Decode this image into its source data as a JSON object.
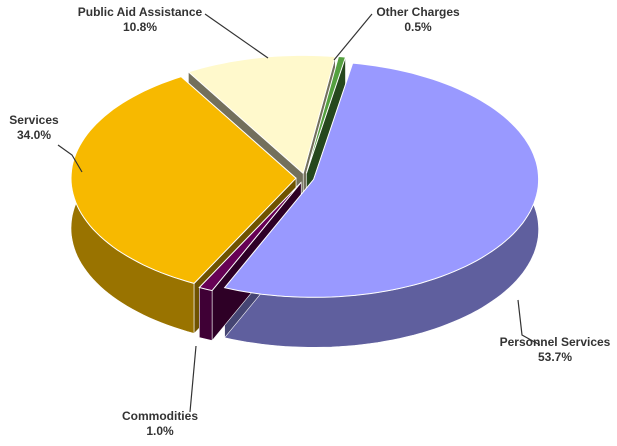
{
  "chart_data": {
    "type": "pie",
    "categories": [
      "Personnel Services",
      "Commodities",
      "Services",
      "Public Aid Assistance",
      "Other Charges"
    ],
    "values": [
      53.7,
      1.0,
      34.0,
      10.8,
      0.5
    ],
    "value_labels": [
      "53.7%",
      "1.0%",
      "34.0%",
      "10.8%",
      "0.5%"
    ],
    "colors": [
      "#9999ff",
      "#660055",
      "#f7b900",
      "#fff9cc",
      "#55a040"
    ]
  }
}
